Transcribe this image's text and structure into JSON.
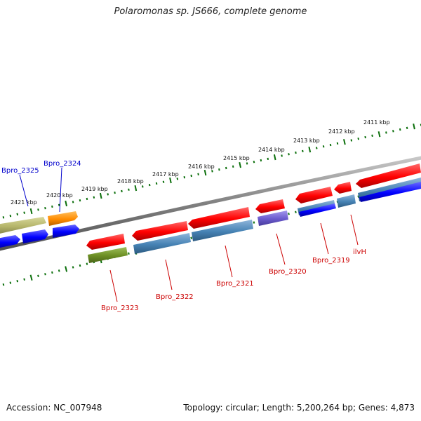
{
  "title": "Polaromonas sp. JS666, complete genome",
  "footer": {
    "accession": "Accession: NC_007948",
    "topology": "Topology: circular; Length: 5,200,264 bp; Genes: 4,873"
  },
  "scale_labels": [
    "2421 kbp",
    "2420 kbp",
    "2419 kbp",
    "2418 kbp",
    "2417 kbp",
    "2416 kbp",
    "2415 kbp",
    "2414 kbp",
    "2413 kbp",
    "2412 kbp",
    "2411 kbp"
  ],
  "gene_labels": {
    "bpro_2325": "Bpro_2325",
    "bpro_2324": "Bpro_2324",
    "bpro_2323": "Bpro_2323",
    "bpro_2322": "Bpro_2322",
    "bpro_2321": "Bpro_2321",
    "bpro_2320": "Bpro_2320",
    "bpro_2319": "Bpro_2319",
    "ilvh": "ilvH"
  },
  "colors": {
    "backbone": "#808080",
    "ticks": "#0a6e0a",
    "cds": "#ff0000",
    "steelblue": "#4682b4",
    "blue": "#0000ff",
    "khaki": "#b5b56a",
    "orange": "#ff8c00",
    "olive": "#6b8e23",
    "slate": "#6a5acd",
    "label_blue": "#0000cc",
    "label_red": "#cc0000"
  }
}
